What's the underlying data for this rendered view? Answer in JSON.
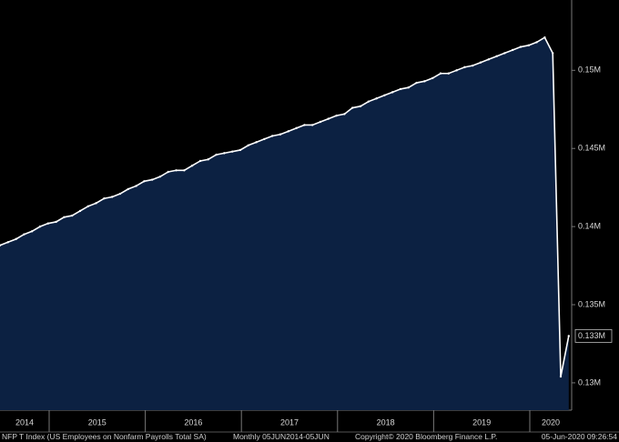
{
  "chart_data": {
    "type": "line",
    "series": [
      {
        "name": "NFP T Index (US Employees on Nonfarm Payrolls Total SA)",
        "color": "#ffffff",
        "area_color": "#0c2142",
        "values": [
          0.1388,
          0.139,
          0.1392,
          0.1395,
          0.1397,
          0.14,
          0.1402,
          0.1403,
          0.1406,
          0.1407,
          0.141,
          0.1413,
          0.1415,
          0.1418,
          0.1419,
          0.1421,
          0.1424,
          0.1426,
          0.1429,
          0.143,
          0.1432,
          0.1435,
          0.1436,
          0.1436,
          0.1439,
          0.1442,
          0.1443,
          0.1446,
          0.1447,
          0.1448,
          0.1449,
          0.1452,
          0.1454,
          0.1456,
          0.1458,
          0.1459,
          0.1461,
          0.1463,
          0.1465,
          0.1465,
          0.1467,
          0.1469,
          0.1471,
          0.1472,
          0.1476,
          0.1477,
          0.148,
          0.1482,
          0.1484,
          0.1486,
          0.1488,
          0.1489,
          0.1492,
          0.1493,
          0.1495,
          0.1498,
          0.1498,
          0.15,
          0.1502,
          0.1503,
          0.1505,
          0.1507,
          0.1509,
          0.1511,
          0.1513,
          0.1515,
          0.1516,
          0.1518,
          0.1521,
          0.1511,
          0.1304,
          0.133
        ]
      }
    ],
    "last_value": 0.133,
    "last_value_label": "0.133M",
    "x_axis_labels": [
      "2014",
      "2015",
      "2016",
      "2017",
      "2018",
      "2019",
      "2020"
    ],
    "ylim": [
      0.12825,
      0.1545
    ],
    "yticks": [
      {
        "value": 0.13,
        "label": "0.13M"
      },
      {
        "value": 0.135,
        "label": "0.135M"
      },
      {
        "value": 0.14,
        "label": "0.14M"
      },
      {
        "value": 0.145,
        "label": "0.145M"
      },
      {
        "value": 0.15,
        "label": "0.15M"
      }
    ],
    "footer": {
      "description": "NFP T Index (US Employees on Nonfarm Payrolls Total SA)",
      "frequency": "Monthly 05JUN2014-05JUN",
      "copyright": "Copyright© 2020 Bloomberg Finance L.P.",
      "timestamp": "05-Jun-2020 09:26:54"
    }
  }
}
